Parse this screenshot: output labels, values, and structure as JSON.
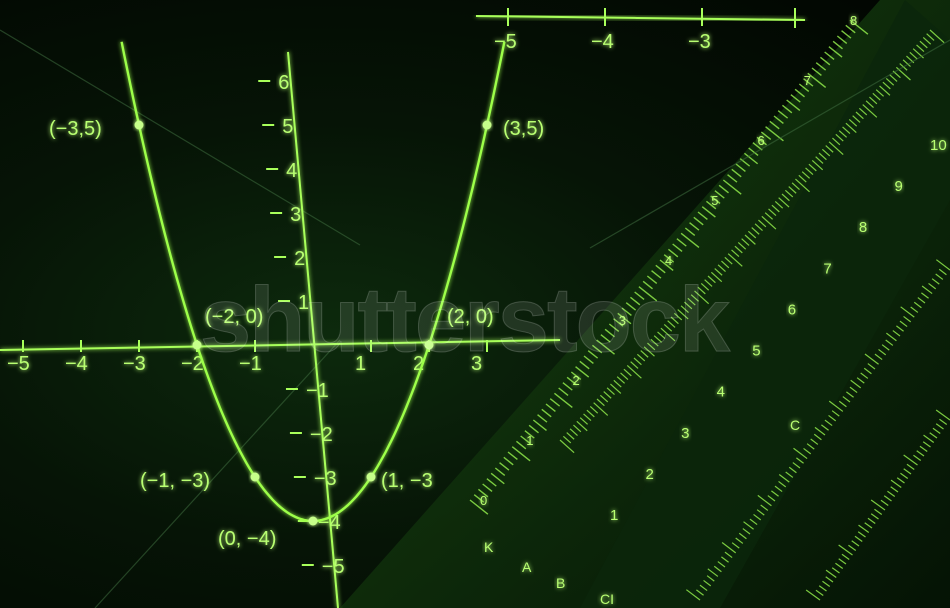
{
  "colors": {
    "background": "#020a02",
    "glow": "#9dff4a",
    "label": "#b9ff72",
    "ruler_body": "#0e2a0e"
  },
  "main_axes": {
    "x_ticks": [
      "−5",
      "−4",
      "−3",
      "−2",
      "−1",
      "1",
      "2",
      "3"
    ],
    "y_ticks": [
      "6",
      "5",
      "4",
      "3",
      "2",
      "1",
      "−1",
      "−2",
      "−3",
      "−4",
      "−5"
    ]
  },
  "top_axis": {
    "ticks": [
      "−5",
      "−4",
      "−3"
    ]
  },
  "parabola": {
    "equation_shown": false,
    "points": [
      {
        "label": "(−3,5)",
        "x": -3,
        "y": 5
      },
      {
        "label": "(3,5)",
        "x": 3,
        "y": 5
      },
      {
        "label": "(−2, 0)",
        "x": -2,
        "y": 0
      },
      {
        "label": "(2, 0)",
        "x": 2,
        "y": 0
      },
      {
        "label": "(−1, −3)",
        "x": -1,
        "y": -3
      },
      {
        "label": "(1, −3",
        "x": 1,
        "y": -3
      },
      {
        "label": "(0, −4)",
        "x": 0,
        "y": -4
      }
    ]
  },
  "slide_rule": {
    "left_scale": [
      "0",
      "1",
      "2",
      "3",
      "4",
      "5",
      "6",
      "7",
      "8"
    ],
    "right_scale": [
      "1",
      "2",
      "3",
      "4",
      "5",
      "6",
      "7",
      "8",
      "9",
      "10"
    ],
    "letters": [
      "K",
      "A",
      "B",
      "C",
      "CI"
    ]
  },
  "watermark": "shutterstock"
}
